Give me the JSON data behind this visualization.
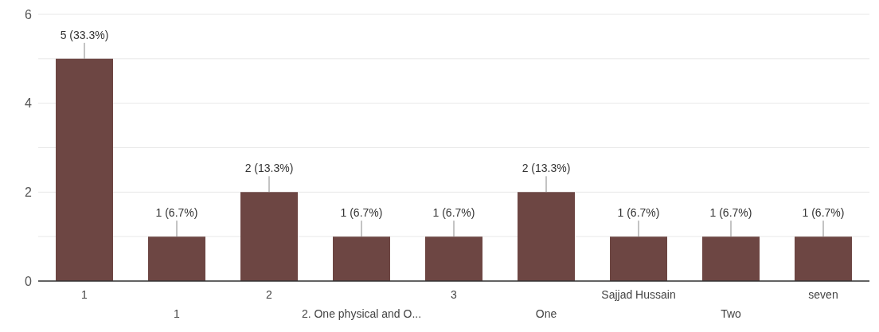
{
  "chart_data": {
    "type": "bar",
    "categories": [
      "1",
      "1",
      "2",
      "2. One physical and O...",
      "3",
      "One",
      "Sajjad Hussain",
      "Two",
      "seven"
    ],
    "values": [
      5,
      1,
      2,
      1,
      1,
      2,
      1,
      1,
      1
    ],
    "value_labels": [
      "5 (33.3%)",
      "1 (6.7%)",
      "2 (13.3%)",
      "1 (6.7%)",
      "1 (6.7%)",
      "2 (13.3%)",
      "1 (6.7%)",
      "1 (6.7%)",
      "1 (6.7%)"
    ],
    "color": "#6d4643",
    "ylim": [
      0,
      6
    ],
    "yticks": [
      0,
      {
        "value": 1,
        "label": null
      },
      2,
      {
        "value": 3,
        "label": null
      },
      4,
      {
        "value": 5,
        "label": null
      },
      6
    ],
    "grid": "y"
  }
}
